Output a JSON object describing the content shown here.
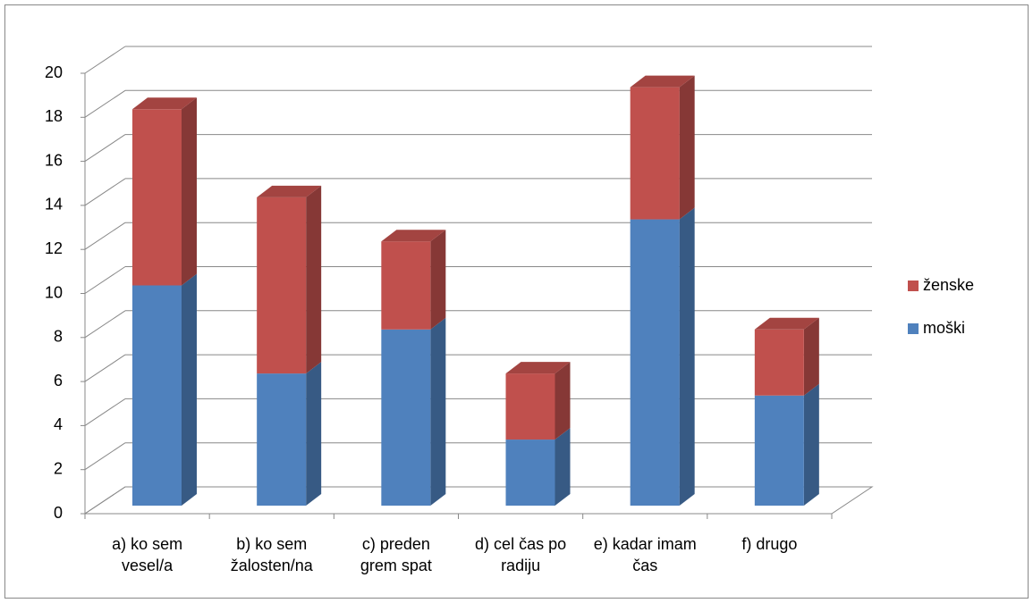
{
  "chart_data": {
    "type": "bar3d_stacked",
    "categories": [
      "a) ko sem vesel/a",
      "b) ko sem žalosten/na",
      "c) preden grem spat",
      "d) cel čas po radiju",
      "e) kadar imam čas",
      "f) drugo"
    ],
    "series": [
      {
        "name": "moški",
        "color": "#4f81bd",
        "values": [
          10,
          6,
          8,
          3,
          13,
          5
        ]
      },
      {
        "name": "ženske",
        "color": "#c0504d",
        "values": [
          8,
          8,
          4,
          3,
          6,
          3
        ]
      }
    ],
    "ylim": [
      0,
      20
    ],
    "yticks": [
      0,
      2,
      4,
      6,
      8,
      10,
      12,
      14,
      16,
      18,
      20
    ],
    "grid": true,
    "legend": "right"
  }
}
